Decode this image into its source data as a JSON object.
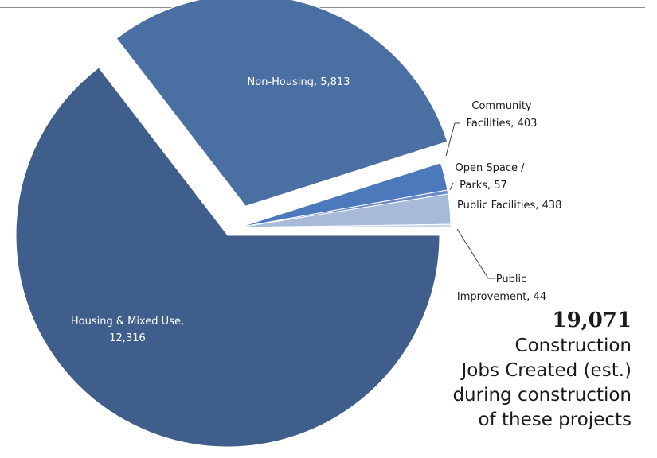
{
  "chart_data": {
    "type": "pie",
    "slices": [
      {
        "label": "Housing & Mixed Use",
        "value": 12316,
        "display_name": "Housing & Mixed Use,",
        "display_value": "12,316",
        "color": "#3f5e8c"
      },
      {
        "label": "Non-Housing",
        "value": 5813,
        "display": "Non-Housing, 5,813",
        "color": "#4a6fa3"
      },
      {
        "label": "Community Facilities",
        "value": 403,
        "display_lines": [
          "Community",
          "Facilities, 403"
        ],
        "color": "#4b79bc"
      },
      {
        "label": "Open Space / Parks",
        "value": 57,
        "display_lines": [
          "Open Space /",
          "Parks, 57"
        ],
        "color": "#6a8cc4"
      },
      {
        "label": "Public Facilities",
        "value": 438,
        "display_lines": [
          "Public Facilities, 438"
        ],
        "color": "#a7bbd9"
      },
      {
        "label": "Public Improvement",
        "value": 44,
        "display_lines": [
          "Public",
          "Improvement, 44"
        ],
        "color": "#c9d6ea"
      }
    ],
    "exploded": [
      "Non-Housing",
      "Community Facilities",
      "Open Space / Parks",
      "Public Facilities",
      "Public Improvement"
    ]
  },
  "summary": {
    "total": "19,071",
    "lines": [
      "Construction",
      "Jobs Created (est.)",
      "during construction",
      "of these projects"
    ]
  }
}
